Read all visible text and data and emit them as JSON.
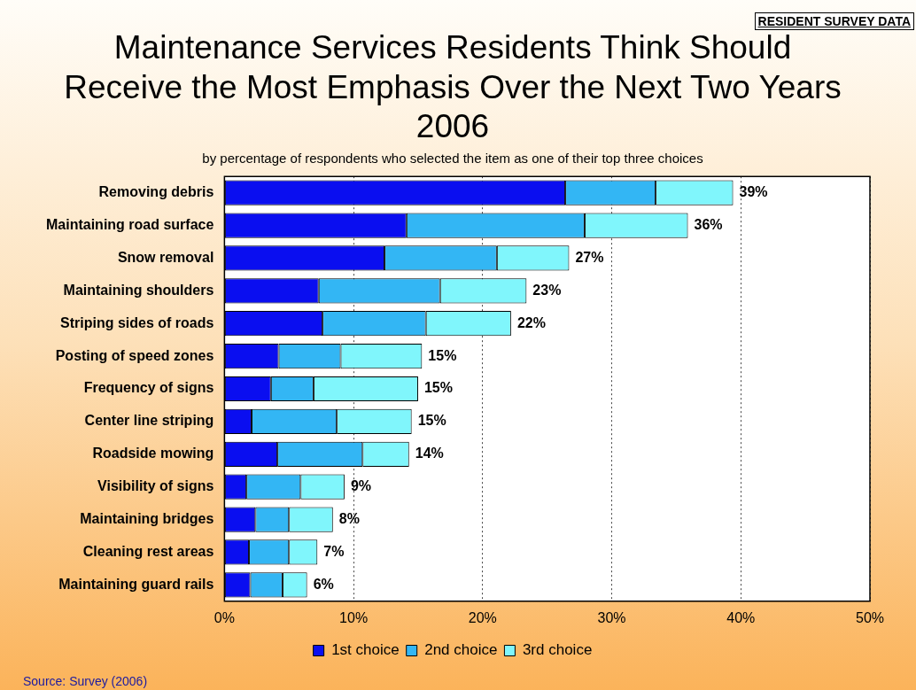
{
  "chart_data": {
    "type": "bar",
    "orientation": "horizontal",
    "stacked": true,
    "title": "Maintenance Services Residents Think Should\nReceive the Most Emphasis Over the Next Two Years\n2006",
    "subtitle": "by percentage of respondents who selected the item as one of their top three choices",
    "categories": [
      "Removing debris",
      "Maintaining road surface",
      "Snow removal",
      "Maintaining shoulders",
      "Striping sides of roads",
      "Posting of speed zones",
      "Frequency of signs",
      "Center line striping",
      "Roadside mowing",
      "Visibility of signs",
      "Maintaining bridges",
      "Cleaning rest areas",
      "Maintaining guard rails"
    ],
    "series": [
      {
        "name": "1st choice",
        "color": "#0a0ef0",
        "values": [
          26.4,
          14.1,
          12.4,
          7.3,
          7.6,
          4.2,
          3.6,
          2.1,
          4.1,
          1.7,
          2.4,
          1.9,
          2.0
        ]
      },
      {
        "name": "2nd choice",
        "color": "#33b6f4",
        "values": [
          7.0,
          13.8,
          8.7,
          9.4,
          8.0,
          4.8,
          3.3,
          6.6,
          6.6,
          4.2,
          2.6,
          3.1,
          2.5
        ]
      },
      {
        "name": "3rd choice",
        "color": "#80f6fc",
        "values": [
          6.0,
          8.0,
          5.6,
          6.7,
          6.6,
          6.3,
          8.1,
          5.8,
          3.6,
          3.4,
          3.4,
          2.2,
          1.9
        ]
      }
    ],
    "totals": [
      "39%",
      "36%",
      "27%",
      "23%",
      "22%",
      "15%",
      "15%",
      "15%",
      "14%",
      "9%",
      "8%",
      "7%",
      "6%"
    ],
    "xlim": [
      0,
      50
    ],
    "xticks": [
      {
        "value": 0,
        "label": "0%"
      },
      {
        "value": 10,
        "label": "10%"
      },
      {
        "value": 20,
        "label": "20%"
      },
      {
        "value": 30,
        "label": "30%"
      },
      {
        "value": 40,
        "label": "40%"
      },
      {
        "value": 50,
        "label": "50%"
      }
    ],
    "grid": "x",
    "legend": "bottom",
    "annotations": [
      "RESIDENT SURVEY DATA",
      "Source:  Survey (2006)"
    ]
  }
}
